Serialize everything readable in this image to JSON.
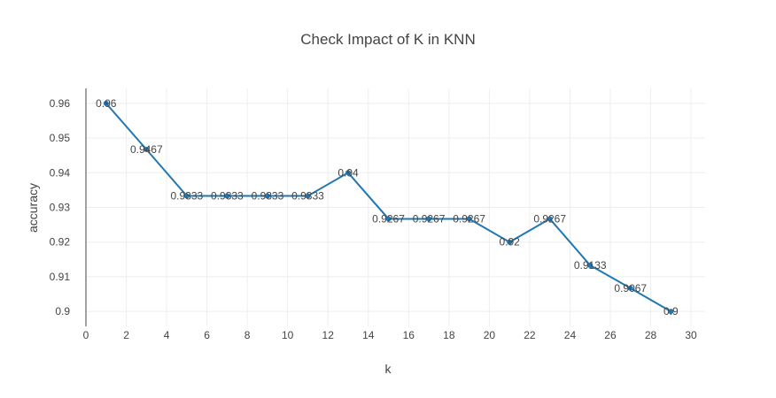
{
  "chart_data": {
    "type": "line",
    "title": "Check Impact of K in KNN",
    "xlabel": "k",
    "ylabel": "accuracy",
    "xlim": [
      0,
      30.7
    ],
    "ylim": [
      0.8957,
      0.9643
    ],
    "x_ticks": [
      0,
      2,
      4,
      6,
      8,
      10,
      12,
      14,
      16,
      18,
      20,
      22,
      24,
      26,
      28,
      30
    ],
    "y_ticks": [
      0.9,
      0.91,
      0.92,
      0.93,
      0.94,
      0.95,
      0.96
    ],
    "grid": true,
    "colors": {
      "series": "#1f77b4",
      "grid": "#eeeeee",
      "text": "#444444"
    },
    "series": [
      {
        "x": [
          1,
          3,
          5,
          7,
          9,
          11,
          13,
          15,
          17,
          19,
          21,
          23,
          25,
          27,
          29
        ],
        "y": [
          0.96,
          0.9467,
          0.9333,
          0.9333,
          0.9333,
          0.9333,
          0.94,
          0.9267,
          0.9267,
          0.9267,
          0.92,
          0.9267,
          0.9133,
          0.9067,
          0.9
        ],
        "labels": [
          "0.96",
          "0.9467",
          "0.9333",
          "0.9333",
          "0.9333",
          "0.9333",
          "0.94",
          "0.9267",
          "0.9267",
          "0.9267",
          "0.92",
          "0.9267",
          "0.9133",
          "0.9067",
          "0.9"
        ]
      }
    ]
  }
}
